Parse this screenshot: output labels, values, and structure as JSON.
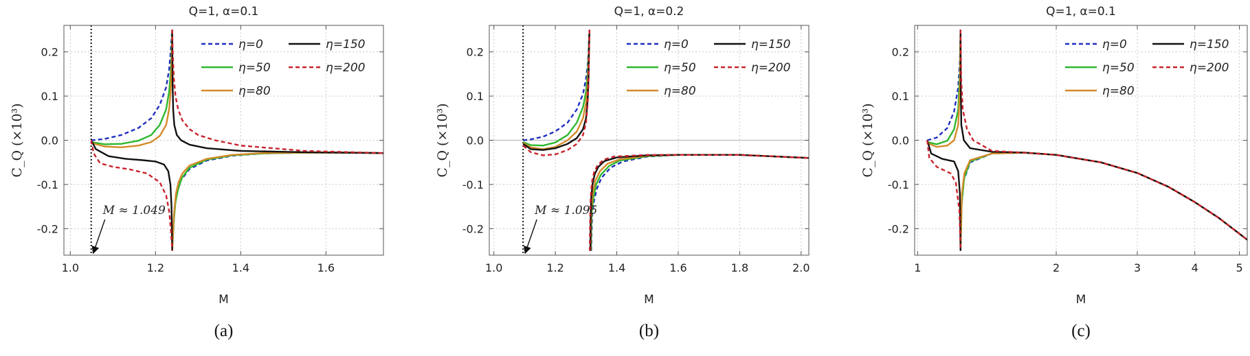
{
  "chart_data": [
    {
      "type": "line",
      "title": "Q=1, α=0.1",
      "xlabel": "M",
      "ylabel": "C_Q (×10³)",
      "caption": "(a)",
      "xscale": "linear",
      "xlim": [
        0.985,
        1.735
      ],
      "ylim": [
        -0.26,
        0.26
      ],
      "xticks": [
        1.0,
        1.2,
        1.4,
        1.6
      ],
      "xtick_labels": [
        "1.0",
        "1.2",
        "1.4",
        "1.6"
      ],
      "yticks": [
        -0.2,
        -0.1,
        0.0,
        0.1,
        0.2
      ],
      "ytick_labels": [
        "-0.2",
        "-0.1",
        "0.0",
        "0.1",
        "0.2"
      ],
      "zero_line": false,
      "vline": 1.049,
      "annotation": "M ≈ 1.049",
      "legend_position": "top-right",
      "series": [
        {
          "name": "η=0",
          "color": "#1f2fbf",
          "dash": "dashed",
          "x": [
            1.049,
            1.08,
            1.12,
            1.16,
            1.19,
            1.21,
            1.225,
            1.232,
            1.2355,
            1.2375,
            1.2385,
            1.2392
          ],
          "y": [
            0.0,
            0.003,
            0.012,
            0.028,
            0.05,
            0.08,
            0.12,
            0.16,
            0.2,
            0.23,
            0.245,
            0.25
          ],
          "x2": [
            1.2392,
            1.242,
            1.245,
            1.25,
            1.26,
            1.28,
            1.32,
            1.38,
            1.45,
            1.55,
            1.65,
            1.735
          ],
          "y2": [
            -0.25,
            -0.2,
            -0.15,
            -0.12,
            -0.09,
            -0.065,
            -0.046,
            -0.035,
            -0.03,
            -0.028,
            -0.028,
            -0.029
          ]
        },
        {
          "name": "η=50",
          "color": "#2db82d",
          "dash": "solid",
          "x": [
            1.049,
            1.08,
            1.12,
            1.16,
            1.19,
            1.21,
            1.225,
            1.232,
            1.2355,
            1.2375,
            1.2385,
            1.2392
          ],
          "y": [
            -0.004,
            -0.009,
            -0.008,
            -0.001,
            0.012,
            0.035,
            0.07,
            0.11,
            0.15,
            0.19,
            0.23,
            0.25
          ],
          "x2": [
            1.2392,
            1.243,
            1.247,
            1.253,
            1.262,
            1.28,
            1.32,
            1.38,
            1.45,
            1.55,
            1.65,
            1.735
          ],
          "y2": [
            -0.25,
            -0.18,
            -0.14,
            -0.11,
            -0.085,
            -0.062,
            -0.044,
            -0.034,
            -0.03,
            -0.028,
            -0.028,
            -0.029
          ]
        },
        {
          "name": "η=80",
          "color": "#d48a2a",
          "dash": "solid",
          "x": [
            1.049,
            1.08,
            1.12,
            1.16,
            1.19,
            1.21,
            1.225,
            1.232,
            1.2355,
            1.2375,
            1.2385,
            1.2392
          ],
          "y": [
            -0.006,
            -0.014,
            -0.016,
            -0.012,
            -0.004,
            0.01,
            0.035,
            0.07,
            0.11,
            0.16,
            0.21,
            0.25
          ],
          "x2": [
            1.2392,
            1.243,
            1.248,
            1.254,
            1.263,
            1.28,
            1.32,
            1.38,
            1.45,
            1.55,
            1.65,
            1.735
          ],
          "y2": [
            -0.25,
            -0.17,
            -0.12,
            -0.095,
            -0.075,
            -0.057,
            -0.042,
            -0.033,
            -0.029,
            -0.028,
            -0.028,
            -0.029
          ]
        },
        {
          "name": "η=150",
          "color": "#111111",
          "dash": "solid",
          "x": [
            1.049,
            1.06,
            1.09,
            1.13,
            1.17,
            1.2,
            1.22,
            1.23,
            1.235,
            1.2375,
            1.2385,
            1.2392
          ],
          "y": [
            0.0,
            -0.02,
            -0.036,
            -0.042,
            -0.045,
            -0.048,
            -0.055,
            -0.07,
            -0.1,
            -0.15,
            -0.21,
            -0.25
          ],
          "x2": [
            1.2392,
            1.2396,
            1.2403,
            1.2415,
            1.244,
            1.25,
            1.26,
            1.28,
            1.32,
            1.4,
            1.55,
            1.735
          ],
          "y2": [
            0.25,
            0.18,
            0.12,
            0.07,
            0.035,
            0.012,
            0.0,
            -0.01,
            -0.018,
            -0.024,
            -0.027,
            -0.029
          ]
        },
        {
          "name": "η=200",
          "color": "#c8232c",
          "dash": "dashed",
          "x": [
            1.049,
            1.055,
            1.07,
            1.1,
            1.14,
            1.18,
            1.21,
            1.225,
            1.232,
            1.236,
            1.2382,
            1.2392
          ],
          "y": [
            0.0,
            -0.03,
            -0.052,
            -0.06,
            -0.066,
            -0.075,
            -0.095,
            -0.125,
            -0.16,
            -0.2,
            -0.235,
            -0.25
          ],
          "x2": [
            1.2392,
            1.2405,
            1.243,
            1.247,
            1.253,
            1.263,
            1.28,
            1.3,
            1.34,
            1.4,
            1.55,
            1.735
          ],
          "y2": [
            0.25,
            0.2,
            0.14,
            0.1,
            0.07,
            0.045,
            0.025,
            0.012,
            0.0,
            -0.012,
            -0.024,
            -0.029
          ]
        }
      ]
    },
    {
      "type": "line",
      "title": "Q=1, α=0.2",
      "xlabel": "M",
      "ylabel": "C_Q (×10³)",
      "caption": "(b)",
      "xscale": "linear",
      "xlim": [
        0.985,
        2.025
      ],
      "ylim": [
        -0.26,
        0.26
      ],
      "xticks": [
        1.0,
        1.2,
        1.4,
        1.6,
        1.8,
        2.0
      ],
      "xtick_labels": [
        "1.0",
        "1.2",
        "1.4",
        "1.6",
        "1.8",
        "2.0"
      ],
      "yticks": [
        -0.2,
        -0.1,
        0.0,
        0.1,
        0.2
      ],
      "ytick_labels": [
        "-0.2",
        "-0.1",
        "0.0",
        "0.1",
        "0.2"
      ],
      "zero_line": true,
      "vline": 1.095,
      "annotation": "M ≈ 1.095",
      "legend_position": "top-right",
      "series": [
        {
          "name": "η=0",
          "color": "#1f2fbf",
          "dash": "dashed",
          "x": [
            1.095,
            1.12,
            1.16,
            1.2,
            1.24,
            1.27,
            1.29,
            1.3,
            1.305,
            1.308,
            1.3095,
            1.311
          ],
          "y": [
            0.0,
            0.002,
            0.008,
            0.02,
            0.04,
            0.07,
            0.105,
            0.14,
            0.17,
            0.2,
            0.23,
            0.25
          ],
          "x2": [
            1.317,
            1.318,
            1.32,
            1.325,
            1.335,
            1.35,
            1.38,
            1.42,
            1.5,
            1.6,
            1.8,
            2.025
          ],
          "y2": [
            -0.25,
            -0.21,
            -0.17,
            -0.14,
            -0.11,
            -0.085,
            -0.062,
            -0.048,
            -0.037,
            -0.033,
            -0.033,
            -0.04
          ]
        },
        {
          "name": "η=50",
          "color": "#2db82d",
          "dash": "solid",
          "x": [
            1.095,
            1.12,
            1.16,
            1.2,
            1.24,
            1.27,
            1.29,
            1.3,
            1.305,
            1.308,
            1.3095,
            1.311
          ],
          "y": [
            -0.004,
            -0.011,
            -0.012,
            -0.005,
            0.012,
            0.04,
            0.075,
            0.11,
            0.15,
            0.19,
            0.22,
            0.25
          ],
          "x2": [
            1.316,
            1.317,
            1.319,
            1.324,
            1.333,
            1.348,
            1.375,
            1.41,
            1.5,
            1.6,
            1.8,
            2.025
          ],
          "y2": [
            -0.25,
            -0.2,
            -0.16,
            -0.13,
            -0.1,
            -0.078,
            -0.058,
            -0.046,
            -0.036,
            -0.033,
            -0.033,
            -0.04
          ]
        },
        {
          "name": "η=80",
          "color": "#d48a2a",
          "dash": "solid",
          "x": [
            1.095,
            1.12,
            1.16,
            1.2,
            1.24,
            1.27,
            1.29,
            1.3,
            1.305,
            1.308,
            1.3095,
            1.311
          ],
          "y": [
            -0.006,
            -0.016,
            -0.02,
            -0.015,
            0.0,
            0.02,
            0.05,
            0.085,
            0.125,
            0.17,
            0.21,
            0.25
          ],
          "x2": [
            1.315,
            1.316,
            1.318,
            1.322,
            1.33,
            1.345,
            1.37,
            1.41,
            1.5,
            1.6,
            1.8,
            2.025
          ],
          "y2": [
            -0.25,
            -0.19,
            -0.15,
            -0.12,
            -0.092,
            -0.07,
            -0.053,
            -0.043,
            -0.035,
            -0.033,
            -0.033,
            -0.04
          ]
        },
        {
          "name": "η=150",
          "color": "#111111",
          "dash": "solid",
          "x": [
            1.095,
            1.12,
            1.16,
            1.2,
            1.24,
            1.27,
            1.29,
            1.3,
            1.305,
            1.308,
            1.3095,
            1.311
          ],
          "y": [
            -0.008,
            -0.02,
            -0.022,
            -0.018,
            -0.008,
            0.005,
            0.025,
            0.05,
            0.09,
            0.14,
            0.2,
            0.25
          ],
          "x2": [
            1.314,
            1.315,
            1.317,
            1.321,
            1.328,
            1.34,
            1.36,
            1.4,
            1.5,
            1.6,
            1.8,
            2.025
          ],
          "y2": [
            -0.25,
            -0.18,
            -0.13,
            -0.1,
            -0.077,
            -0.06,
            -0.047,
            -0.039,
            -0.034,
            -0.033,
            -0.033,
            -0.04
          ]
        },
        {
          "name": "η=200",
          "color": "#c8232c",
          "dash": "dashed",
          "x": [
            1.095,
            1.12,
            1.16,
            1.2,
            1.24,
            1.27,
            1.29,
            1.3,
            1.305,
            1.308,
            1.3095,
            1.311
          ],
          "y": [
            -0.012,
            -0.027,
            -0.034,
            -0.032,
            -0.022,
            -0.008,
            0.012,
            0.04,
            0.08,
            0.13,
            0.19,
            0.25
          ],
          "x2": [
            1.312,
            1.313,
            1.315,
            1.319,
            1.326,
            1.338,
            1.357,
            1.39,
            1.5,
            1.6,
            1.8,
            2.025
          ],
          "y2": [
            -0.25,
            -0.18,
            -0.13,
            -0.095,
            -0.072,
            -0.056,
            -0.044,
            -0.037,
            -0.033,
            -0.033,
            -0.033,
            -0.04
          ]
        }
      ]
    },
    {
      "type": "line",
      "title": "Q=1, α=0.1",
      "xlabel": "M",
      "ylabel": "C_Q (×10³)",
      "caption": "(c)",
      "xscale": "log",
      "xlim": [
        0.985,
        5.2
      ],
      "ylim": [
        -0.26,
        0.26
      ],
      "xticks": [
        1,
        2,
        3,
        4,
        5
      ],
      "xtick_labels": [
        "1",
        "2",
        "3",
        "4",
        "5"
      ],
      "yticks": [
        -0.2,
        -0.1,
        0.0,
        0.1,
        0.2
      ],
      "ytick_labels": [
        "-0.2",
        "-0.1",
        "0.0",
        "0.1",
        "0.2"
      ],
      "zero_line": false,
      "vline": null,
      "annotation": "",
      "legend_position": "top-right",
      "series": [
        {
          "name": "η=0",
          "color": "#1f2fbf",
          "dash": "dashed",
          "x": [
            1.049,
            1.1,
            1.16,
            1.2,
            1.225,
            1.235,
            1.2392
          ],
          "y": [
            0.0,
            0.006,
            0.028,
            0.065,
            0.12,
            0.18,
            0.25
          ],
          "x2": [
            1.2392,
            1.245,
            1.26,
            1.3,
            1.45,
            1.7,
            2.0,
            2.5,
            3.0,
            3.5,
            4.0,
            4.5,
            5.2
          ],
          "y2": [
            -0.25,
            -0.15,
            -0.09,
            -0.05,
            -0.03,
            -0.028,
            -0.033,
            -0.05,
            -0.074,
            -0.105,
            -0.14,
            -0.175,
            -0.225
          ]
        },
        {
          "name": "η=50",
          "color": "#2db82d",
          "dash": "solid",
          "x": [
            1.049,
            1.1,
            1.16,
            1.2,
            1.225,
            1.235,
            1.2392
          ],
          "y": [
            -0.004,
            -0.009,
            -0.001,
            0.025,
            0.07,
            0.15,
            0.25
          ],
          "x2": [
            1.2392,
            1.247,
            1.262,
            1.3,
            1.45,
            1.7,
            2.0,
            2.5,
            3.0,
            3.5,
            4.0,
            4.5,
            5.2
          ],
          "y2": [
            -0.25,
            -0.14,
            -0.085,
            -0.048,
            -0.03,
            -0.028,
            -0.033,
            -0.05,
            -0.074,
            -0.105,
            -0.14,
            -0.175,
            -0.225
          ]
        },
        {
          "name": "η=80",
          "color": "#d48a2a",
          "dash": "solid",
          "x": [
            1.049,
            1.1,
            1.16,
            1.2,
            1.225,
            1.235,
            1.2392
          ],
          "y": [
            -0.006,
            -0.015,
            -0.012,
            0.0,
            0.035,
            0.11,
            0.25
          ],
          "x2": [
            1.2392,
            1.248,
            1.263,
            1.3,
            1.45,
            1.7,
            2.0,
            2.5,
            3.0,
            3.5,
            4.0,
            4.5,
            5.2
          ],
          "y2": [
            -0.25,
            -0.12,
            -0.075,
            -0.045,
            -0.03,
            -0.028,
            -0.033,
            -0.05,
            -0.074,
            -0.105,
            -0.14,
            -0.175,
            -0.225
          ]
        },
        {
          "name": "η=150",
          "color": "#111111",
          "dash": "solid",
          "x": [
            1.049,
            1.07,
            1.13,
            1.2,
            1.225,
            1.235,
            1.2392
          ],
          "y": [
            0.0,
            -0.03,
            -0.042,
            -0.048,
            -0.07,
            -0.12,
            -0.25
          ],
          "x2": [
            1.2392,
            1.2405,
            1.244,
            1.26,
            1.3,
            1.45,
            1.7,
            2.0,
            2.5,
            3.0,
            3.5,
            4.0,
            4.5,
            5.2
          ],
          "y2": [
            0.25,
            0.12,
            0.035,
            0.0,
            -0.018,
            -0.026,
            -0.028,
            -0.033,
            -0.05,
            -0.074,
            -0.105,
            -0.14,
            -0.175,
            -0.225
          ]
        },
        {
          "name": "η=200",
          "color": "#c8232c",
          "dash": "dashed",
          "x": [
            1.049,
            1.06,
            1.1,
            1.18,
            1.21,
            1.232,
            1.2392
          ],
          "y": [
            0.0,
            -0.04,
            -0.06,
            -0.075,
            -0.095,
            -0.16,
            -0.25
          ],
          "x2": [
            1.2392,
            1.243,
            1.253,
            1.28,
            1.32,
            1.45,
            1.7,
            2.0,
            2.5,
            3.0,
            3.5,
            4.0,
            4.5,
            5.2
          ],
          "y2": [
            0.25,
            0.14,
            0.07,
            0.025,
            0.0,
            -0.024,
            -0.028,
            -0.033,
            -0.05,
            -0.074,
            -0.105,
            -0.14,
            -0.175,
            -0.225
          ]
        }
      ]
    }
  ]
}
